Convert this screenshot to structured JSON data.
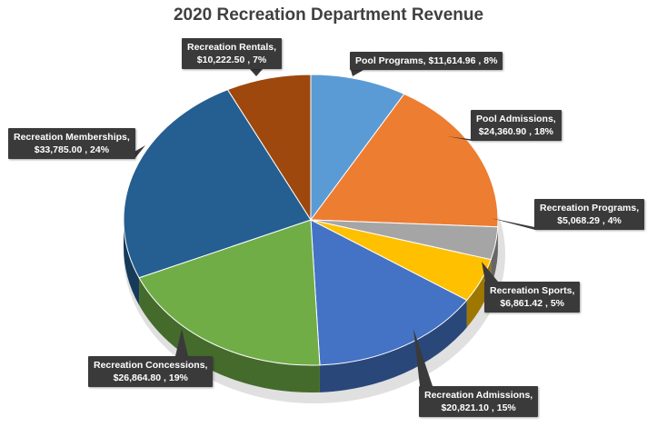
{
  "chart_data": {
    "type": "pie",
    "title": "2020 Recreation Department Revenue",
    "slices": [
      {
        "label": "Pool Programs",
        "value": 11614.96,
        "value_text": "$11,614.96",
        "percent": "8%",
        "color": "#5b9bd5"
      },
      {
        "label": "Pool Admissions",
        "value": 24360.9,
        "value_text": "$24,360.90",
        "percent": "18%",
        "color": "#ed7d31"
      },
      {
        "label": "Recreation Programs",
        "value": 5068.29,
        "value_text": "$5,068.29",
        "percent": "4%",
        "color": "#a5a5a5"
      },
      {
        "label": "Recreation Sports",
        "value": 6861.42,
        "value_text": "$6,861.42",
        "percent": "5%",
        "color": "#ffc000"
      },
      {
        "label": "Recreation Admissions",
        "value": 20821.1,
        "value_text": "$20,821.10",
        "percent": "15%",
        "color": "#4472c4"
      },
      {
        "label": "Recreation Concessions",
        "value": 26864.8,
        "value_text": "$26,864.80",
        "percent": "19%",
        "color": "#70ad47"
      },
      {
        "label": "Recreation Memberships",
        "value": 33785.0,
        "value_text": "$33,785.00",
        "percent": "24%",
        "color": "#255e91"
      },
      {
        "label": "Recreation Rentals",
        "value": 10222.5,
        "value_text": "$10,222.50",
        "percent": "7%",
        "color": "#9e480e"
      }
    ]
  }
}
